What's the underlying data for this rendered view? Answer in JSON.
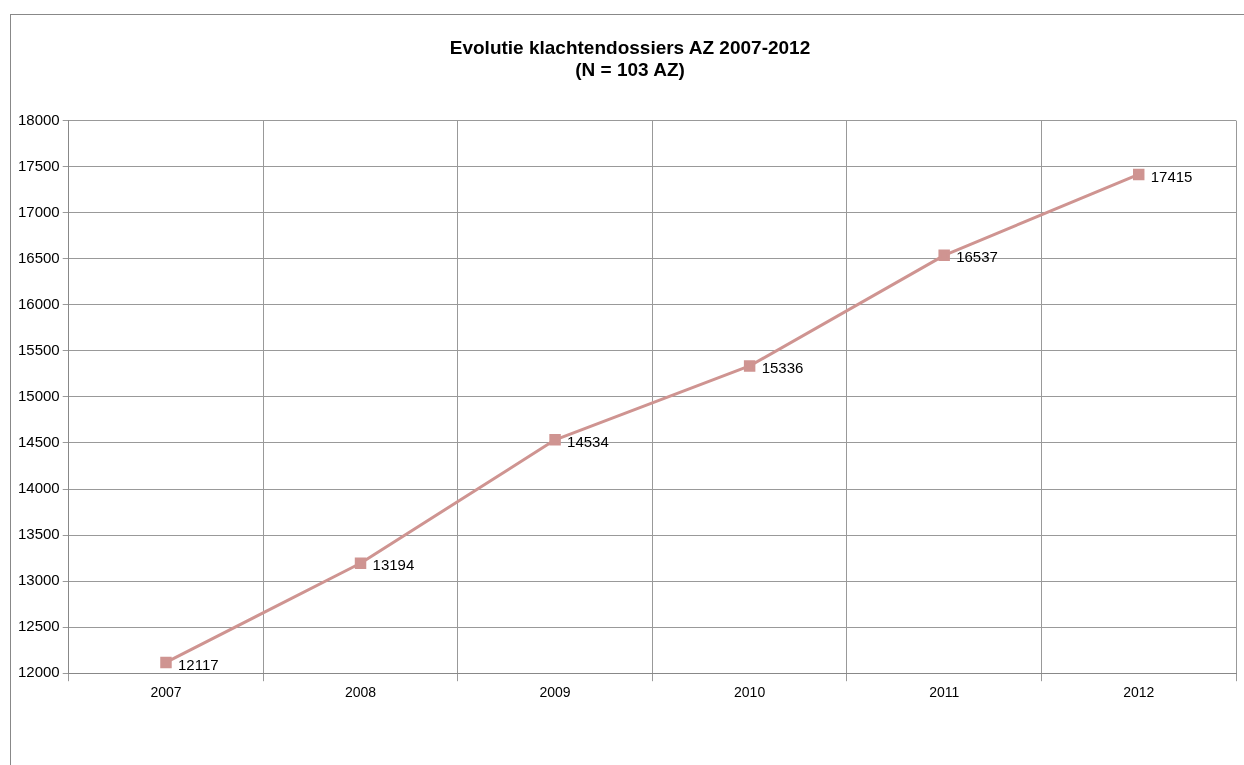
{
  "chart_data": {
    "type": "line",
    "title": "Evolutie klachtendossiers AZ 2007-2012",
    "subtitle": "(N = 103 AZ)",
    "categories": [
      "2007",
      "2008",
      "2009",
      "2010",
      "2011",
      "2012"
    ],
    "series": [
      {
        "color": "#cf9491",
        "values": [
          12117,
          13194,
          14534,
          15336,
          16537,
          17415
        ]
      }
    ],
    "ylim": [
      12000,
      18000
    ],
    "yticks": [
      12000,
      12500,
      13000,
      13500,
      14000,
      14500,
      15000,
      15500,
      16000,
      16500,
      17000,
      17500,
      18000
    ],
    "grid": true,
    "legend": false,
    "marker": "square",
    "line_style": "solid",
    "data_labels": true
  }
}
